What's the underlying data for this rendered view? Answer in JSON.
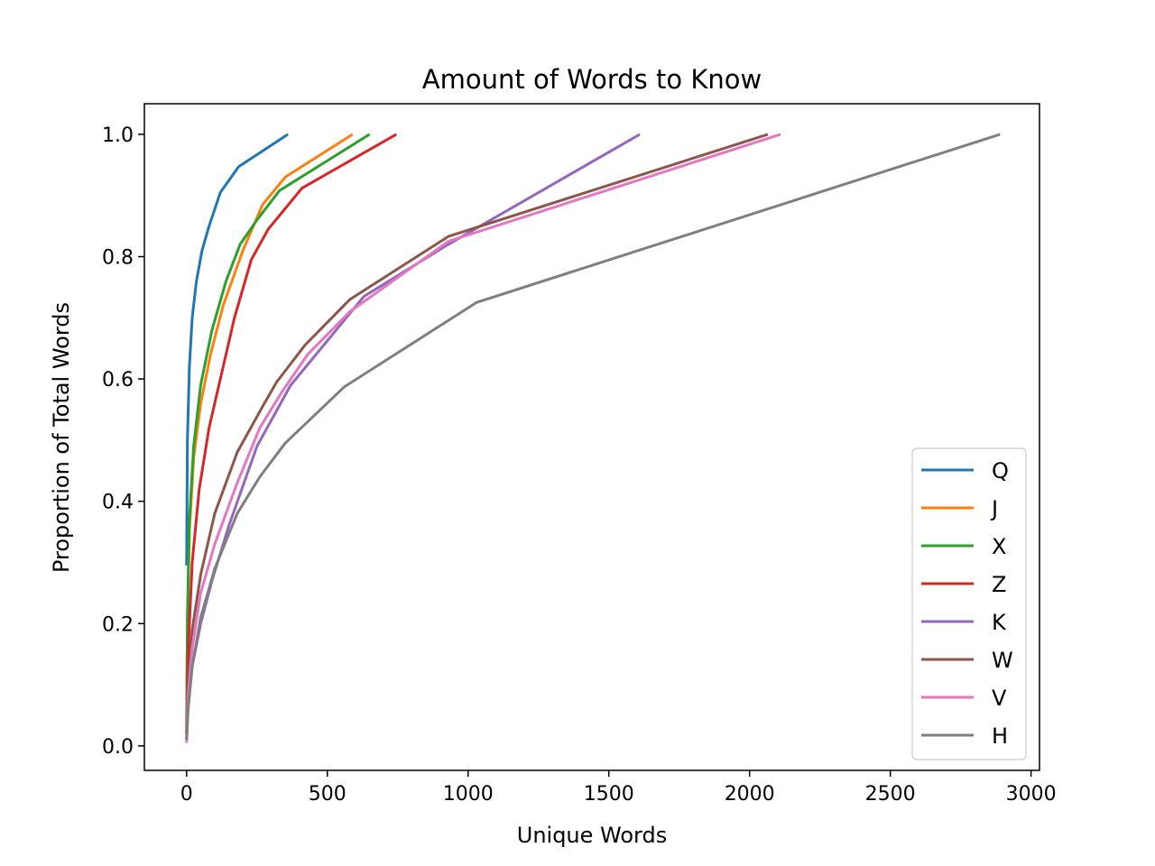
{
  "chart_data": {
    "type": "line",
    "title": "Amount of Words to Know",
    "xlabel": "Unique Words",
    "ylabel": "Proportion of Total Words",
    "xlim": [
      -150,
      3030
    ],
    "ylim": [
      -0.04,
      1.05
    ],
    "xticks": [
      0,
      500,
      1000,
      1500,
      2000,
      2500,
      3000
    ],
    "yticks": [
      0.0,
      0.2,
      0.4,
      0.6,
      0.8,
      1.0
    ],
    "grid": false,
    "legend_position": "lower-right",
    "series": [
      {
        "name": "Q",
        "color": "#1f77b4",
        "x": [
          0,
          3,
          10,
          20,
          35,
          55,
          80,
          120,
          185,
          360
        ],
        "y": [
          0.295,
          0.5,
          0.62,
          0.7,
          0.76,
          0.81,
          0.85,
          0.905,
          0.947,
          1.0
        ]
      },
      {
        "name": "J",
        "color": "#ff7f0e",
        "x": [
          0,
          3,
          10,
          25,
          50,
          85,
          130,
          200,
          270,
          350,
          590
        ],
        "y": [
          0.02,
          0.2,
          0.35,
          0.47,
          0.56,
          0.64,
          0.72,
          0.81,
          0.885,
          0.93,
          1.0
        ]
      },
      {
        "name": "X",
        "color": "#2ca02c",
        "x": [
          0,
          3,
          10,
          25,
          50,
          90,
          140,
          190,
          250,
          330,
          650
        ],
        "y": [
          0.02,
          0.21,
          0.37,
          0.49,
          0.59,
          0.68,
          0.76,
          0.82,
          0.86,
          0.908,
          1.0
        ]
      },
      {
        "name": "Z",
        "color": "#d62728",
        "x": [
          0,
          5,
          20,
          45,
          80,
          120,
          170,
          230,
          290,
          410,
          745
        ],
        "y": [
          0.01,
          0.15,
          0.3,
          0.42,
          0.52,
          0.6,
          0.7,
          0.795,
          0.845,
          0.912,
          1.0
        ]
      },
      {
        "name": "K",
        "color": "#9467bd",
        "x": [
          0,
          5,
          20,
          50,
          90,
          150,
          250,
          370,
          630,
          930,
          1610
        ],
        "y": [
          0.01,
          0.06,
          0.13,
          0.2,
          0.27,
          0.36,
          0.49,
          0.59,
          0.735,
          0.82,
          1.0
        ]
      },
      {
        "name": "W",
        "color": "#8c564b",
        "x": [
          0,
          5,
          20,
          50,
          100,
          180,
          270,
          320,
          420,
          580,
          930,
          2065
        ],
        "y": [
          0.02,
          0.1,
          0.19,
          0.28,
          0.38,
          0.48,
          0.555,
          0.595,
          0.655,
          0.73,
          0.833,
          1.0
        ]
      },
      {
        "name": "V",
        "color": "#e377c2",
        "x": [
          0,
          5,
          20,
          50,
          100,
          180,
          260,
          340,
          430,
          580,
          930,
          2110
        ],
        "y": [
          0.005,
          0.08,
          0.16,
          0.25,
          0.33,
          0.43,
          0.52,
          0.58,
          0.64,
          0.71,
          0.825,
          1.0
        ]
      },
      {
        "name": "H",
        "color": "#7f7f7f",
        "x": [
          0,
          5,
          20,
          50,
          100,
          180,
          260,
          350,
          560,
          1030,
          2890
        ],
        "y": [
          0.01,
          0.06,
          0.13,
          0.21,
          0.29,
          0.38,
          0.44,
          0.495,
          0.587,
          0.725,
          1.0
        ]
      }
    ]
  }
}
